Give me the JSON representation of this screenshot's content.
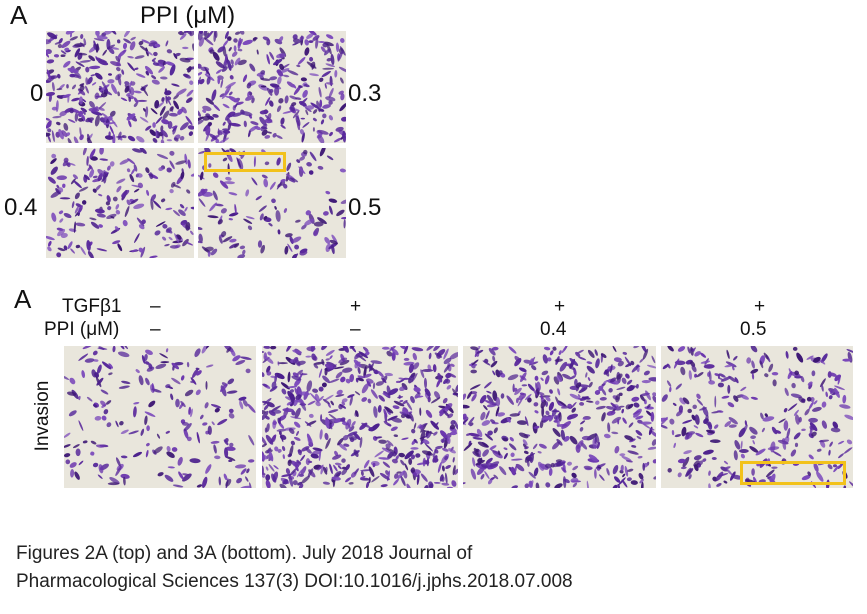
{
  "figure_top": {
    "panel_label": "A",
    "title": "PPI (μM)",
    "doses": [
      "0",
      "0.3",
      "0.4",
      "0.5"
    ]
  },
  "figure_bottom": {
    "panel_label": "A",
    "row1_label": "TGFβ1",
    "row2_label": "PPI (μM)",
    "tgf": [
      "–",
      "+",
      "+",
      "+"
    ],
    "ppi": [
      "–",
      "–",
      "0.4",
      "0.5"
    ],
    "side_label": "Invasion"
  },
  "caption": {
    "line1": "Figures 2A (top) and 3A (bottom). July 2018 Journal of",
    "line2": "Pharmacological Sciences 137(3)  DOI:10.1016/j.jphs.2018.07.008"
  },
  "colors": {
    "stain": "#5b2a9c",
    "background": "#e9e6dc",
    "highlight_box": "#f2c21b"
  }
}
